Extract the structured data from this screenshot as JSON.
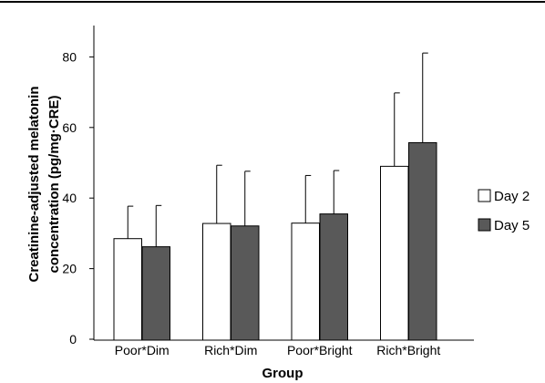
{
  "chart_data": {
    "type": "bar",
    "categories": [
      "Poor*Dim",
      "Rich*Dim",
      "Poor*Bright",
      "Rich*Bright"
    ],
    "series": [
      {
        "name": "Day 2",
        "values": [
          28.5,
          32.8,
          32.9,
          49.0
        ],
        "error": [
          9.2,
          16.5,
          13.5,
          20.8
        ],
        "color": "#ffffff"
      },
      {
        "name": "Day 5",
        "values": [
          26.2,
          32.1,
          35.5,
          55.7
        ],
        "error": [
          11.7,
          15.5,
          12.3,
          25.4
        ],
        "color": "#595959"
      }
    ],
    "title": "",
    "xlabel": "Group",
    "ylabel": [
      "Creatinine-adjusted melatonin",
      "concentration (pg/mg·CRE)"
    ],
    "ylim": [
      0,
      90
    ],
    "yticks": [
      0,
      20,
      40,
      60,
      80
    ],
    "grid": false,
    "legend_position": "right"
  }
}
